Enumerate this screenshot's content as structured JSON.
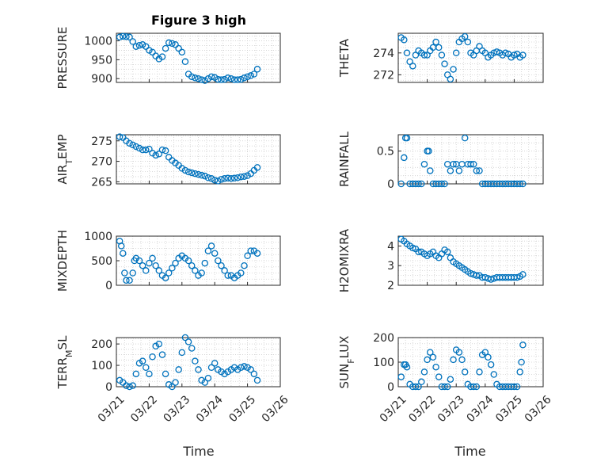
{
  "figure": {
    "title": "Figure 3 high"
  },
  "x_axis": {
    "label": "Time",
    "ticks": [
      "03/21",
      "03/22",
      "03/23",
      "03/24",
      "03/25",
      "03/26"
    ]
  },
  "colors": {
    "marker": "#0072BD",
    "axis": "#262626"
  },
  "chart_data": [
    {
      "type": "scatter",
      "title": "Figure 3 high",
      "ylabel": "PRESSURE",
      "xlim": [
        0,
        5
      ],
      "ylim": [
        890,
        1020
      ],
      "yticks": [
        "1000",
        "950",
        "900"
      ],
      "ytick_values": [
        1000,
        950,
        900
      ],
      "show_xticks": false,
      "x": [
        0.1,
        0.2,
        0.3,
        0.4,
        0.5,
        0.6,
        0.7,
        0.8,
        0.9,
        1.0,
        1.1,
        1.2,
        1.3,
        1.4,
        1.5,
        1.6,
        1.7,
        1.8,
        1.9,
        2.0,
        2.1,
        2.2,
        2.3,
        2.4,
        2.5,
        2.6,
        2.7,
        2.8,
        2.9,
        3.0,
        3.1,
        3.2,
        3.3,
        3.4,
        3.5,
        3.6,
        3.7,
        3.8,
        3.9,
        4.0,
        4.1,
        4.2,
        4.3
      ],
      "y": [
        1010,
        1012,
        1011,
        1010,
        998,
        985,
        988,
        990,
        985,
        975,
        970,
        960,
        952,
        958,
        980,
        995,
        993,
        990,
        980,
        970,
        945,
        912,
        905,
        902,
        900,
        897,
        895,
        900,
        905,
        903,
        898,
        897,
        898,
        902,
        900,
        897,
        897,
        898,
        902,
        905,
        908,
        912,
        925
      ]
    },
    {
      "type": "scatter",
      "ylabel": "THETA",
      "xlim": [
        0,
        5
      ],
      "ylim": [
        271.3,
        275.8
      ],
      "yticks": [
        "274",
        "272"
      ],
      "ytick_values": [
        274,
        272
      ],
      "show_xticks": false,
      "x": [
        0.1,
        0.2,
        0.3,
        0.4,
        0.5,
        0.6,
        0.7,
        0.8,
        0.9,
        1.0,
        1.1,
        1.2,
        1.3,
        1.4,
        1.5,
        1.6,
        1.7,
        1.8,
        1.9,
        2.0,
        2.1,
        2.2,
        2.3,
        2.4,
        2.5,
        2.6,
        2.7,
        2.8,
        2.9,
        3.0,
        3.1,
        3.2,
        3.3,
        3.4,
        3.5,
        3.6,
        3.7,
        3.8,
        3.9,
        4.0,
        4.1,
        4.2,
        4.3
      ],
      "y": [
        275.4,
        275.2,
        274.0,
        273.2,
        272.8,
        273.8,
        274.2,
        274.0,
        273.8,
        273.8,
        274.2,
        274.5,
        275.0,
        274.5,
        273.8,
        273.0,
        272.0,
        271.6,
        272.5,
        274.0,
        275.0,
        275.3,
        275.5,
        275.0,
        274.0,
        273.8,
        274.2,
        274.6,
        274.2,
        274.0,
        273.6,
        273.8,
        274.0,
        274.1,
        274.0,
        273.8,
        274.0,
        273.9,
        273.6,
        273.8,
        273.9,
        273.6,
        273.8
      ]
    },
    {
      "type": "scatter",
      "ylabel": "AIR_TEMP",
      "ylabel_parts": [
        "AIR",
        "T",
        "EMP"
      ],
      "xlim": [
        0,
        5
      ],
      "ylim": [
        264.5,
        276.5
      ],
      "yticks": [
        "275",
        "270",
        "265"
      ],
      "ytick_values": [
        275,
        270,
        265
      ],
      "show_xticks": false,
      "x": [
        0.1,
        0.2,
        0.3,
        0.4,
        0.5,
        0.6,
        0.7,
        0.8,
        0.9,
        1.0,
        1.1,
        1.2,
        1.3,
        1.4,
        1.5,
        1.6,
        1.7,
        1.8,
        1.9,
        2.0,
        2.1,
        2.2,
        2.3,
        2.4,
        2.5,
        2.6,
        2.7,
        2.8,
        2.9,
        3.0,
        3.1,
        3.2,
        3.3,
        3.4,
        3.5,
        3.6,
        3.7,
        3.8,
        3.9,
        4.0,
        4.1,
        4.2,
        4.3
      ],
      "y": [
        276.0,
        275.8,
        275.0,
        274.4,
        274.0,
        273.6,
        273.2,
        272.8,
        272.8,
        273.0,
        272.0,
        271.5,
        271.8,
        272.8,
        272.6,
        271.0,
        270.2,
        269.6,
        269.0,
        268.3,
        267.8,
        267.4,
        267.2,
        267.0,
        266.8,
        266.6,
        266.4,
        266.0,
        265.8,
        265.4,
        265.2,
        265.6,
        265.8,
        265.9,
        265.8,
        265.9,
        266.0,
        266.2,
        266.3,
        266.5,
        267.0,
        267.8,
        268.5
      ]
    },
    {
      "type": "scatter",
      "ylabel": "RAINFALL",
      "xlim": [
        0,
        5
      ],
      "ylim": [
        0,
        0.75
      ],
      "yticks": [
        "0.5",
        "0"
      ],
      "ytick_values": [
        0.5,
        0
      ],
      "show_xticks": false,
      "x": [
        0.1,
        0.2,
        0.25,
        0.3,
        0.4,
        0.5,
        0.6,
        0.7,
        0.8,
        0.9,
        1.0,
        1.05,
        1.1,
        1.2,
        1.3,
        1.4,
        1.5,
        1.6,
        1.7,
        1.8,
        1.9,
        2.0,
        2.1,
        2.2,
        2.3,
        2.4,
        2.5,
        2.6,
        2.7,
        2.8,
        2.9,
        3.0,
        3.1,
        3.2,
        3.3,
        3.4,
        3.5,
        3.6,
        3.7,
        3.8,
        3.9,
        4.0,
        4.1,
        4.2,
        4.3
      ],
      "y": [
        0,
        0.4,
        0.7,
        0.7,
        0,
        0,
        0,
        0,
        0,
        0.3,
        0.5,
        0.5,
        0.2,
        0,
        0,
        0,
        0,
        0,
        0.3,
        0.2,
        0.3,
        0.3,
        0.2,
        0.3,
        0.7,
        0.3,
        0.3,
        0.3,
        0.2,
        0.2,
        0,
        0,
        0,
        0,
        0,
        0,
        0,
        0,
        0,
        0,
        0,
        0,
        0,
        0,
        0
      ]
    },
    {
      "type": "scatter",
      "ylabel": "MIXDEPTH",
      "xlim": [
        0,
        5
      ],
      "ylim": [
        0,
        1000
      ],
      "yticks": [
        "1000",
        "500",
        "0"
      ],
      "ytick_values": [
        1000,
        500,
        0
      ],
      "show_xticks": false,
      "x": [
        0.1,
        0.15,
        0.2,
        0.25,
        0.3,
        0.4,
        0.5,
        0.55,
        0.6,
        0.7,
        0.8,
        0.9,
        1.0,
        1.1,
        1.2,
        1.3,
        1.4,
        1.5,
        1.6,
        1.7,
        1.8,
        1.9,
        2.0,
        2.1,
        2.2,
        2.3,
        2.4,
        2.5,
        2.6,
        2.7,
        2.8,
        2.9,
        3.0,
        3.1,
        3.2,
        3.3,
        3.4,
        3.5,
        3.6,
        3.7,
        3.8,
        3.9,
        4.0,
        4.1,
        4.2,
        4.3
      ],
      "y": [
        900,
        800,
        650,
        250,
        100,
        100,
        250,
        500,
        550,
        500,
        400,
        300,
        450,
        550,
        400,
        300,
        200,
        150,
        250,
        350,
        450,
        550,
        600,
        550,
        500,
        400,
        300,
        200,
        250,
        450,
        700,
        800,
        650,
        500,
        400,
        300,
        200,
        200,
        150,
        200,
        250,
        400,
        600,
        700,
        700,
        650
      ]
    },
    {
      "type": "scatter",
      "ylabel": "H2OMIXRA",
      "xlim": [
        0,
        5
      ],
      "ylim": [
        2,
        4.5
      ],
      "yticks": [
        "4",
        "3",
        "2"
      ],
      "ytick_values": [
        4,
        3,
        2
      ],
      "show_xticks": false,
      "x": [
        0.1,
        0.2,
        0.3,
        0.4,
        0.5,
        0.6,
        0.7,
        0.8,
        0.9,
        1.0,
        1.1,
        1.2,
        1.3,
        1.4,
        1.5,
        1.6,
        1.7,
        1.8,
        1.9,
        2.0,
        2.1,
        2.2,
        2.3,
        2.4,
        2.5,
        2.6,
        2.7,
        2.8,
        2.9,
        3.0,
        3.1,
        3.2,
        3.3,
        3.4,
        3.5,
        3.6,
        3.7,
        3.8,
        3.9,
        4.0,
        4.1,
        4.2,
        4.3
      ],
      "y": [
        4.35,
        4.25,
        4.1,
        4.0,
        3.9,
        3.85,
        3.7,
        3.7,
        3.6,
        3.5,
        3.6,
        3.7,
        3.5,
        3.4,
        3.6,
        3.8,
        3.7,
        3.4,
        3.2,
        3.1,
        3.0,
        2.9,
        2.8,
        2.7,
        2.6,
        2.55,
        2.5,
        2.5,
        2.4,
        2.4,
        2.35,
        2.3,
        2.35,
        2.4,
        2.4,
        2.4,
        2.4,
        2.4,
        2.4,
        2.4,
        2.4,
        2.45,
        2.55
      ]
    },
    {
      "type": "scatter",
      "ylabel": "TERR_MSL",
      "ylabel_parts": [
        "TERR",
        "M",
        "SL"
      ],
      "xlim": [
        0,
        5
      ],
      "ylim": [
        0,
        230
      ],
      "yticks": [
        "200",
        "100",
        "0"
      ],
      "ytick_values": [
        200,
        100,
        0
      ],
      "show_xticks": true,
      "x": [
        0.1,
        0.2,
        0.3,
        0.4,
        0.5,
        0.6,
        0.7,
        0.8,
        0.9,
        1.0,
        1.1,
        1.2,
        1.3,
        1.4,
        1.5,
        1.6,
        1.7,
        1.8,
        1.9,
        2.0,
        2.1,
        2.2,
        2.3,
        2.4,
        2.5,
        2.6,
        2.7,
        2.8,
        2.9,
        3.0,
        3.1,
        3.2,
        3.3,
        3.4,
        3.5,
        3.6,
        3.7,
        3.8,
        3.9,
        4.0,
        4.1,
        4.2,
        4.3
      ],
      "y": [
        30,
        20,
        5,
        0,
        5,
        60,
        110,
        120,
        90,
        60,
        140,
        190,
        200,
        150,
        60,
        10,
        0,
        20,
        80,
        160,
        230,
        210,
        180,
        120,
        80,
        30,
        20,
        40,
        90,
        110,
        80,
        70,
        60,
        70,
        80,
        90,
        80,
        90,
        95,
        90,
        80,
        60,
        30
      ]
    },
    {
      "type": "scatter",
      "ylabel": "SUN_FLUX",
      "ylabel_parts": [
        "SUN",
        "F",
        "LUX"
      ],
      "xlim": [
        0,
        5
      ],
      "ylim": [
        0,
        200
      ],
      "yticks": [
        "200",
        "100",
        "0"
      ],
      "ytick_values": [
        200,
        100,
        0
      ],
      "show_xticks": true,
      "x": [
        0.1,
        0.2,
        0.25,
        0.3,
        0.4,
        0.5,
        0.6,
        0.7,
        0.8,
        0.9,
        1.0,
        1.1,
        1.2,
        1.3,
        1.4,
        1.5,
        1.6,
        1.7,
        1.8,
        1.9,
        2.0,
        2.1,
        2.2,
        2.3,
        2.4,
        2.5,
        2.6,
        2.7,
        2.8,
        2.9,
        3.0,
        3.1,
        3.2,
        3.3,
        3.4,
        3.5,
        3.6,
        3.7,
        3.8,
        3.9,
        4.0,
        4.1,
        4.2,
        4.25,
        4.3
      ],
      "y": [
        40,
        90,
        90,
        80,
        10,
        0,
        0,
        0,
        20,
        60,
        110,
        140,
        120,
        80,
        40,
        0,
        0,
        0,
        30,
        110,
        150,
        140,
        110,
        60,
        10,
        0,
        0,
        0,
        60,
        130,
        140,
        120,
        90,
        50,
        10,
        0,
        0,
        0,
        0,
        0,
        0,
        0,
        60,
        100,
        170
      ]
    }
  ]
}
